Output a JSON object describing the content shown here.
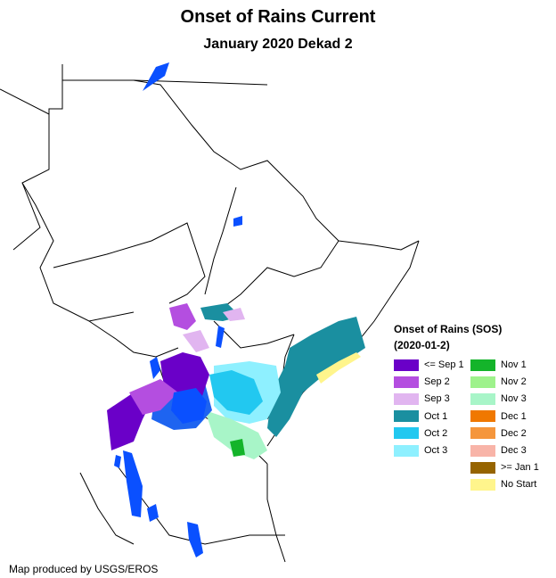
{
  "header": {
    "title": "Onset of Rains Current",
    "subtitle": "January 2020 Dekad 2"
  },
  "legend": {
    "title_line1": "Onset of Rains (SOS)",
    "title_line2": "(2020-01-2)",
    "items": [
      {
        "label": "<= Sep 1",
        "color": "#6a00c8"
      },
      {
        "label": "Sep 2",
        "color": "#b44ee0"
      },
      {
        "label": "Sep 3",
        "color": "#e1b5f0"
      },
      {
        "label": "Oct 1",
        "color": "#1a8fa0"
      },
      {
        "label": "Oct 2",
        "color": "#22c8f0"
      },
      {
        "label": "Oct 3",
        "color": "#8ef0ff"
      },
      {
        "label": "Nov 1",
        "color": "#14b42a"
      },
      {
        "label": "Nov 2",
        "color": "#9ef28c"
      },
      {
        "label": "Nov 3",
        "color": "#a8f5c8"
      },
      {
        "label": "Dec 1",
        "color": "#f07800"
      },
      {
        "label": "Dec 2",
        "color": "#f5963c"
      },
      {
        "label": "Dec 3",
        "color": "#f8b4a8"
      },
      {
        "label": ">= Jan 1",
        "color": "#966400"
      },
      {
        "label": "No Start",
        "color": "#fff58c"
      }
    ]
  },
  "map": {
    "border_color": "#000000",
    "water_color": "#0a50ff",
    "rain_colors": {
      "sep1": "#6a00c8",
      "sep2": "#b44ee0",
      "sep3": "#e1b5f0",
      "oct1": "#1a8fa0",
      "oct2": "#22c8f0",
      "oct3": "#8ef0ff",
      "nov1": "#14b42a",
      "nov2": "#9ef28c",
      "nov3": "#a8f5c8",
      "blue": "#1e64f0",
      "nostart": "#fff58c"
    }
  },
  "footer": {
    "credit": "Map produced by USGS/EROS"
  }
}
